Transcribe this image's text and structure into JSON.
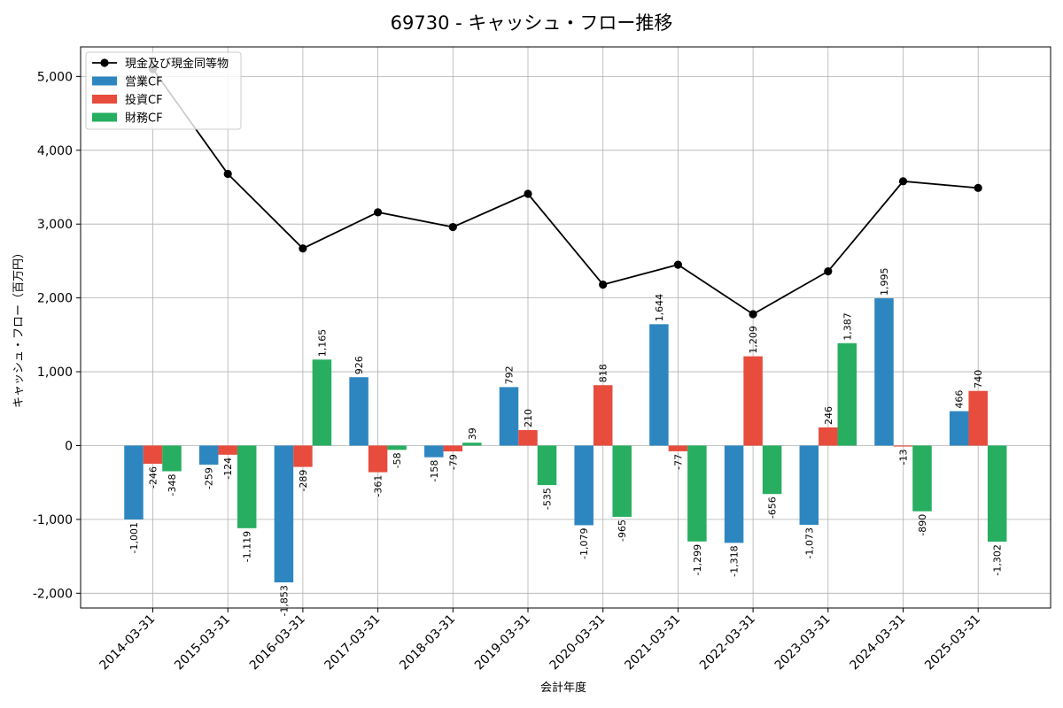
{
  "chart_data": {
    "type": "bar",
    "title": "69730 - キャッシュ・フロー推移",
    "xlabel": "会計年度",
    "ylabel": "キャッシュ・フロー（百万円）",
    "ylim": [
      -2200,
      5400
    ],
    "yticks": [
      -2000,
      -1000,
      0,
      1000,
      2000,
      3000,
      4000,
      5000
    ],
    "ytick_labels": [
      "-2,000",
      "-1,000",
      "0",
      "1,000",
      "2,000",
      "3,000",
      "4,000",
      "5,000"
    ],
    "grid": true,
    "legend_position": "top-left",
    "categories": [
      "2014-03-31",
      "2015-03-31",
      "2016-03-31",
      "2017-03-31",
      "2018-03-31",
      "2019-03-31",
      "2020-03-31",
      "2021-03-31",
      "2022-03-31",
      "2023-03-31",
      "2024-03-31",
      "2025-03-31"
    ],
    "series": [
      {
        "name": "営業CF",
        "kind": "bar",
        "color": "#2e86c1",
        "values": [
          -1001,
          -259,
          -1853,
          926,
          -158,
          792,
          -1079,
          1644,
          -1318,
          -1073,
          1995,
          466
        ],
        "labels": [
          "-1,001",
          "-259",
          "-1,853",
          "926",
          "-158",
          "792",
          "-1,079",
          "1,644",
          "-1,318",
          "-1,073",
          "1,995",
          "466"
        ]
      },
      {
        "name": "投資CF",
        "kind": "bar",
        "color": "#e74c3c",
        "values": [
          -246,
          -124,
          -289,
          -361,
          -79,
          210,
          818,
          -77,
          1209,
          246,
          -13,
          740
        ],
        "labels": [
          "-246",
          "-124",
          "-289",
          "-361",
          "-79",
          "210",
          "818",
          "-77",
          "1,209",
          "246",
          "-13",
          "740"
        ]
      },
      {
        "name": "財務CF",
        "kind": "bar",
        "color": "#27ae60",
        "values": [
          -348,
          -1119,
          1165,
          -58,
          39,
          -535,
          -965,
          -1299,
          -656,
          1387,
          -890,
          -1302
        ],
        "labels": [
          "-348",
          "-1,119",
          "1,165",
          "-58",
          "39",
          "-535",
          "-965",
          "-1,299",
          "-656",
          "1,387",
          "-890",
          "-1,302"
        ]
      },
      {
        "name": "現金及び現金同等物",
        "kind": "line",
        "color": "#000000",
        "values": [
          5100,
          3680,
          2670,
          3160,
          2960,
          3410,
          2180,
          2450,
          1780,
          2360,
          3580,
          3490
        ]
      }
    ]
  }
}
